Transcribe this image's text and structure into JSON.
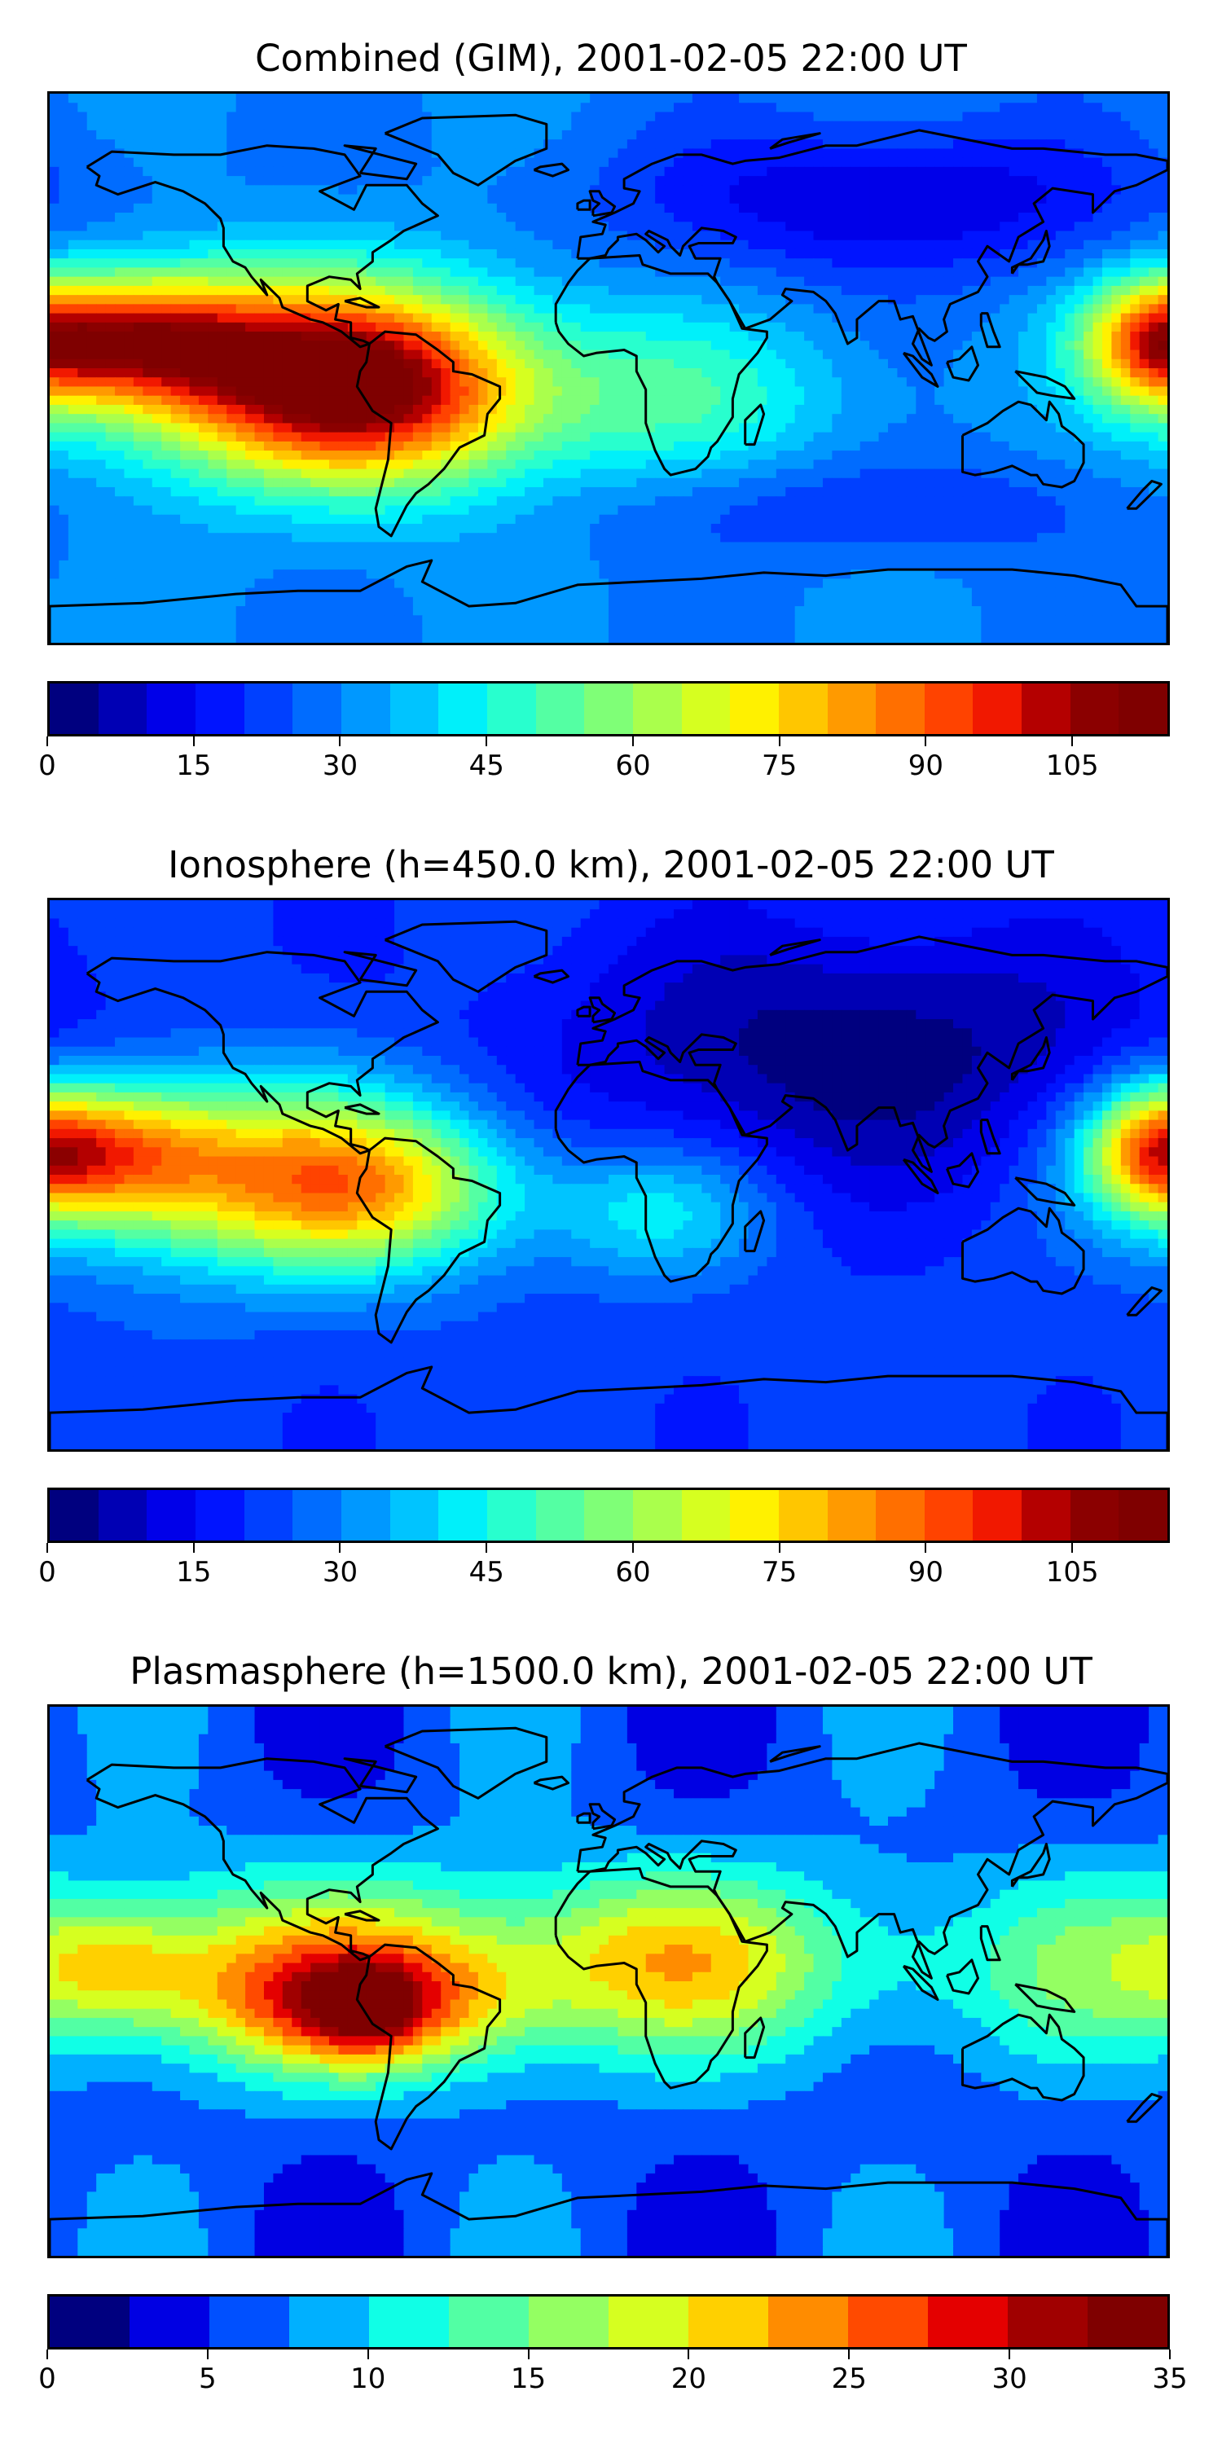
{
  "panels": [
    {
      "title": "Combined (GIM), 2001-02-05 22:00 UT",
      "colorbar": {
        "min": 0,
        "max": 115,
        "levels": 23,
        "tick_labels": [
          "0",
          "15",
          "30",
          "45",
          "60",
          "75",
          "90",
          "105"
        ],
        "tick_values": [
          0,
          15,
          30,
          45,
          60,
          75,
          90,
          105
        ]
      },
      "field": {
        "background_level": 30,
        "blobs": [
          {
            "lon": -155,
            "lat": 10,
            "sx": 28,
            "sy": 14,
            "amp": 55
          },
          {
            "lon": -105,
            "lat": -2,
            "sx": 45,
            "sy": 22,
            "amp": 55
          },
          {
            "lon": -72,
            "lat": -8,
            "sx": 35,
            "sy": 22,
            "amp": 45
          },
          {
            "lon": 20,
            "lat": -10,
            "sx": 40,
            "sy": 20,
            "amp": 18
          },
          {
            "lon": 175,
            "lat": 8,
            "sx": 15,
            "sy": 15,
            "amp": 35
          },
          {
            "lon": 90,
            "lat": 55,
            "sx": 60,
            "sy": 18,
            "amp": -20
          },
          {
            "lon": 80,
            "lat": -45,
            "sx": 60,
            "sy": 12,
            "amp": -10
          }
        ]
      }
    },
    {
      "title": "Ionosphere  (h=450.0 km), 2001-02-05 22:00 UT",
      "colorbar": {
        "min": 0,
        "max": 115,
        "levels": 23,
        "tick_labels": [
          "0",
          "15",
          "30",
          "45",
          "60",
          "75",
          "90",
          "105"
        ],
        "tick_values": [
          0,
          15,
          30,
          45,
          60,
          75,
          90,
          105
        ]
      },
      "field": {
        "background_level": 22,
        "blobs": [
          {
            "lon": -165,
            "lat": 8,
            "sx": 25,
            "sy": 15,
            "amp": 45
          },
          {
            "lon": -115,
            "lat": 0,
            "sx": 45,
            "sy": 22,
            "amp": 50
          },
          {
            "lon": -70,
            "lat": -5,
            "sx": 30,
            "sy": 18,
            "amp": 30
          },
          {
            "lon": 15,
            "lat": -12,
            "sx": 25,
            "sy": 15,
            "amp": 20
          },
          {
            "lon": 175,
            "lat": 8,
            "sx": 15,
            "sy": 15,
            "amp": 35
          },
          {
            "lon": 80,
            "lat": 40,
            "sx": 70,
            "sy": 30,
            "amp": -20
          }
        ]
      }
    },
    {
      "title": "Plasmasphere (h=1500.0 km), 2001-02-05 22:00 UT",
      "colorbar": {
        "min": 0,
        "max": 35,
        "levels": 14,
        "tick_labels": [
          "0",
          "5",
          "10",
          "15",
          "20",
          "25",
          "30",
          "35"
        ],
        "tick_values": [
          0,
          5,
          10,
          15,
          20,
          25,
          30,
          35
        ]
      },
      "field": {
        "background_level": 6,
        "blobs": [
          {
            "lon": -60,
            "lat": 5,
            "sx": 150,
            "sy": 22,
            "amp": 12
          },
          {
            "lon": -160,
            "lat": 5,
            "sx": 20,
            "sy": 14,
            "amp": 8
          },
          {
            "lon": -80,
            "lat": -8,
            "sx": 35,
            "sy": 15,
            "amp": 14
          },
          {
            "lon": -78,
            "lat": -10,
            "sx": 12,
            "sy": 10,
            "amp": 8
          },
          {
            "lon": 20,
            "lat": 10,
            "sx": 30,
            "sy": 18,
            "amp": 4
          }
        ]
      }
    }
  ],
  "colors": {
    "jet_23": [
      "#00007f",
      "#0000b4",
      "#0000e9",
      "#0014ff",
      "#0040ff",
      "#006cff",
      "#0098ff",
      "#00c4ff",
      "#00f0fa",
      "#28ffce",
      "#54ffa3",
      "#7fff77",
      "#aaff4c",
      "#d6ff20",
      "#fff100",
      "#ffc600",
      "#ff9a00",
      "#ff6f00",
      "#ff4300",
      "#f11800",
      "#b40000",
      "#8b0000",
      "#7f0000"
    ],
    "jet_14": [
      "#00007f",
      "#0000e3",
      "#0050ff",
      "#00b0ff",
      "#10ffe6",
      "#52ffa4",
      "#94ff62",
      "#d6ff20",
      "#ffd000",
      "#ff8c00",
      "#ff4a00",
      "#e40000",
      "#a00000",
      "#7f0000"
    ],
    "coastline": "#000000"
  }
}
